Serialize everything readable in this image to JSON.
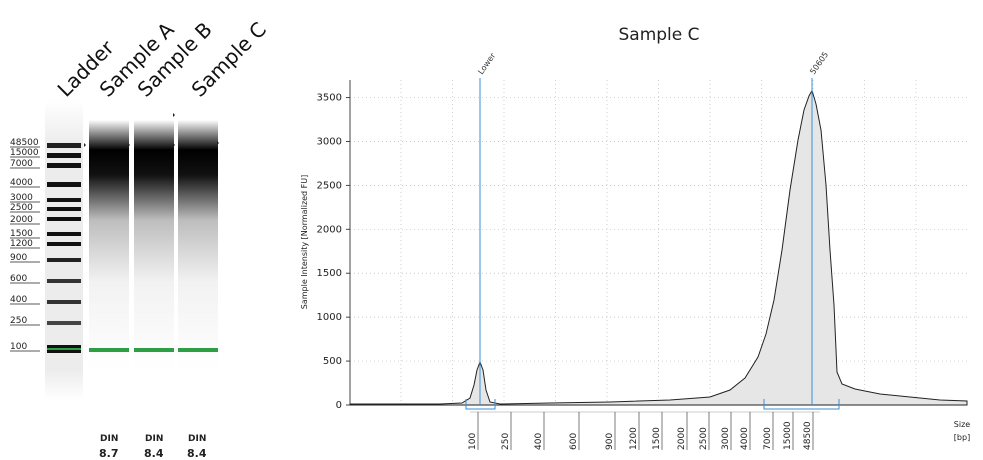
{
  "gel": {
    "lanes": [
      "Ladder",
      "Sample A",
      "Sample B",
      "Sample C"
    ],
    "ladder_sizes": [
      "48500",
      "15000",
      "7000",
      "4000",
      "3000",
      "2500",
      "2000",
      "1500",
      "1200",
      "900",
      "600",
      "400",
      "250",
      "100"
    ],
    "din_label": "DIN",
    "din_values": [
      "8.7",
      "8.4",
      "8.4"
    ],
    "marker_color": "#2e9e45"
  },
  "chart_data": {
    "type": "area",
    "title": "Sample C",
    "ylabel": "Sample Intensity [Normalized FU]",
    "xlabel": "Size\n[bp]",
    "ylim": [
      0,
      3700
    ],
    "yticks": [
      0,
      500,
      1000,
      1500,
      2000,
      2500,
      3000,
      3500
    ],
    "xtick_labels": [
      "100",
      "250",
      "400",
      "600",
      "900",
      "1200",
      "1500",
      "2000",
      "2500",
      "3000",
      "4000",
      "7000",
      "15000",
      "48500"
    ],
    "peaks": [
      {
        "label": "Lower",
        "size_bp": 100,
        "intensity": 490
      },
      {
        "label": "50605",
        "size_bp": 50605,
        "intensity": 3580
      }
    ],
    "grid": true,
    "fill_color": "#e6e6e6",
    "marker_line_color": "#3a8fd6"
  }
}
